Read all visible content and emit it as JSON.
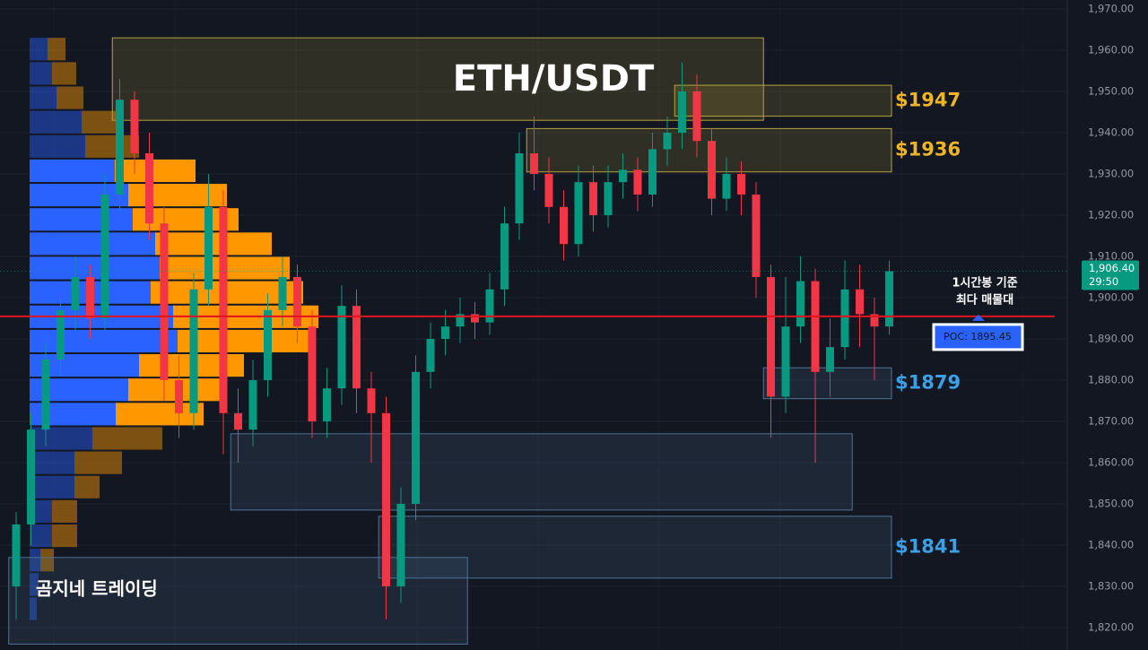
{
  "chart_data": {
    "type": "candlestick",
    "title": "ETH/USDT",
    "watermark": "곰지네 트레이딩",
    "ylim": [
      1820,
      1970
    ],
    "yticks": [
      {
        "value": 1820,
        "label": "1,820.00"
      },
      {
        "value": 1830,
        "label": "1,830.00"
      },
      {
        "value": 1840,
        "label": "1,840.00"
      },
      {
        "value": 1850,
        "label": "1,850.00"
      },
      {
        "value": 1860,
        "label": "1,860.00"
      },
      {
        "value": 1870,
        "label": "1,870.00"
      },
      {
        "value": 1880,
        "label": "1,880.00"
      },
      {
        "value": 1890,
        "label": "1,890.00"
      },
      {
        "value": 1900,
        "label": "1,900.00"
      },
      {
        "value": 1910,
        "label": "1,910.00"
      },
      {
        "value": 1920,
        "label": "1,920.00"
      },
      {
        "value": 1930,
        "label": "1,930.00"
      },
      {
        "value": 1940,
        "label": "1,940.00"
      },
      {
        "value": 1950,
        "label": "1,950.00"
      },
      {
        "value": 1960,
        "label": "1,960.00"
      },
      {
        "value": 1970,
        "label": "1,970.00"
      }
    ],
    "grid": true,
    "up_color": "#089981",
    "down_color": "#f23645",
    "open": [
      1830,
      1845,
      1868,
      1885,
      1897,
      1905,
      1895,
      1925,
      1948,
      1935,
      1918,
      1880,
      1872,
      1902,
      1922,
      1872,
      1868,
      1880,
      1897,
      1905,
      1893,
      1870,
      1878,
      1898,
      1878,
      1872,
      1830,
      1850,
      1882,
      1890,
      1893,
      1896,
      1894,
      1902,
      1918,
      1935,
      1930,
      1922,
      1913,
      1928,
      1920,
      1928,
      1931,
      1925,
      1936,
      1940,
      1950,
      1938,
      1924,
      1930,
      1925,
      1905,
      1876,
      1893,
      1904,
      1882,
      1888,
      1902,
      1896,
      1893
    ],
    "high": [
      1848,
      1872,
      1889,
      1900,
      1910,
      1908,
      1930,
      1953,
      1950,
      1940,
      1922,
      1886,
      1906,
      1930,
      1926,
      1878,
      1885,
      1901,
      1910,
      1908,
      1897,
      1883,
      1903,
      1902,
      1882,
      1876,
      1854,
      1886,
      1894,
      1897,
      1900,
      1899,
      1906,
      1922,
      1940,
      1944,
      1934,
      1926,
      1932,
      1932,
      1932,
      1935,
      1934,
      1940,
      1944,
      1957,
      1954,
      1941,
      1934,
      1933,
      1928,
      1908,
      1905,
      1910,
      1907,
      1895,
      1909,
      1908,
      1900,
      1909
    ],
    "low": [
      1822,
      1840,
      1864,
      1881,
      1892,
      1890,
      1892,
      1921,
      1930,
      1914,
      1875,
      1866,
      1868,
      1898,
      1862,
      1860,
      1864,
      1876,
      1893,
      1889,
      1866,
      1866,
      1874,
      1872,
      1860,
      1822,
      1826,
      1846,
      1878,
      1886,
      1889,
      1890,
      1891,
      1898,
      1914,
      1926,
      1918,
      1909,
      1910,
      1916,
      1917,
      1924,
      1921,
      1922,
      1932,
      1936,
      1934,
      1920,
      1921,
      1920,
      1900,
      1866,
      1872,
      1889,
      1860,
      1876,
      1885,
      1888,
      1880,
      1891
    ],
    "close": [
      1845,
      1868,
      1885,
      1897,
      1905,
      1895,
      1925,
      1948,
      1935,
      1918,
      1880,
      1872,
      1902,
      1922,
      1872,
      1868,
      1880,
      1897,
      1905,
      1893,
      1870,
      1878,
      1898,
      1878,
      1872,
      1830,
      1850,
      1882,
      1890,
      1893,
      1896,
      1894,
      1902,
      1918,
      1935,
      1930,
      1922,
      1913,
      1928,
      1920,
      1928,
      1931,
      1925,
      1936,
      1940,
      1950,
      1938,
      1924,
      1930,
      1925,
      1905,
      1876,
      1893,
      1904,
      1882,
      1888,
      1902,
      1896,
      1893,
      1906.4
    ],
    "zones": [
      {
        "top": 1963,
        "bottom": 1943,
        "start": 7,
        "end": 50,
        "color": "#b5a33a"
      },
      {
        "top": 1951.5,
        "bottom": 1944,
        "start": 45,
        "end": 59,
        "color": "#b5a33a",
        "label": "$1947"
      },
      {
        "top": 1941,
        "bottom": 1930.5,
        "start": 35,
        "end": 59,
        "color": "#b5a33a",
        "label": "$1936"
      },
      {
        "top": 1883,
        "bottom": 1875.5,
        "start": 51,
        "end": 59,
        "color": "#4f7396",
        "label": "$1879"
      },
      {
        "top": 1867,
        "bottom": 1848.5,
        "start": 15,
        "end": 56,
        "color": "#4f7396"
      },
      {
        "top": 1847,
        "bottom": 1832,
        "start": 25,
        "end": 59,
        "color": "#4f7396",
        "label": "$1841"
      },
      {
        "top": 1837,
        "bottom": 1816,
        "start": 0,
        "end": 30,
        "color": "#4f7396"
      }
    ],
    "zone_label_colors": {
      "#b5a33a": "#f0b429",
      "#4f7396": "#3ba0e6"
    },
    "volume_profile": {
      "row_size": 5.9,
      "price_levels": [
        1957.1,
        1951.2,
        1945.3,
        1939.4,
        1933.5,
        1927.6,
        1921.7,
        1915.8,
        1909.9,
        1904.0,
        1898.1,
        1892.2,
        1886.3,
        1880.4,
        1874.5,
        1868.6,
        1862.7,
        1856.8,
        1850.9,
        1845.0,
        1839.1,
        1833.2,
        1827.3,
        1821.4
      ],
      "buy": [
        20,
        25,
        30,
        58,
        62,
        95,
        110,
        115,
        140,
        145,
        135,
        160,
        165,
        122,
        110,
        96,
        70,
        50,
        50,
        25,
        25,
        12,
        10,
        8
      ],
      "sell": [
        20,
        27,
        30,
        40,
        60,
        90,
        110,
        118,
        130,
        145,
        170,
        162,
        152,
        117,
        108,
        98,
        78,
        53,
        28,
        28,
        28,
        15,
        0,
        0
      ],
      "value_area_high": 1928,
      "value_area_low": 1868,
      "buy_color": "#2962ff",
      "sell_color": "#ff9800"
    },
    "poc": {
      "value": 1895.45,
      "label": "POC: 1895.45",
      "note": [
        "1시간봉 기준",
        "최다 매물대"
      ],
      "color": "#e0141e"
    },
    "last_price": {
      "value": 1906.4,
      "label": "1,906.40"
    },
    "countdown": "29:50"
  }
}
